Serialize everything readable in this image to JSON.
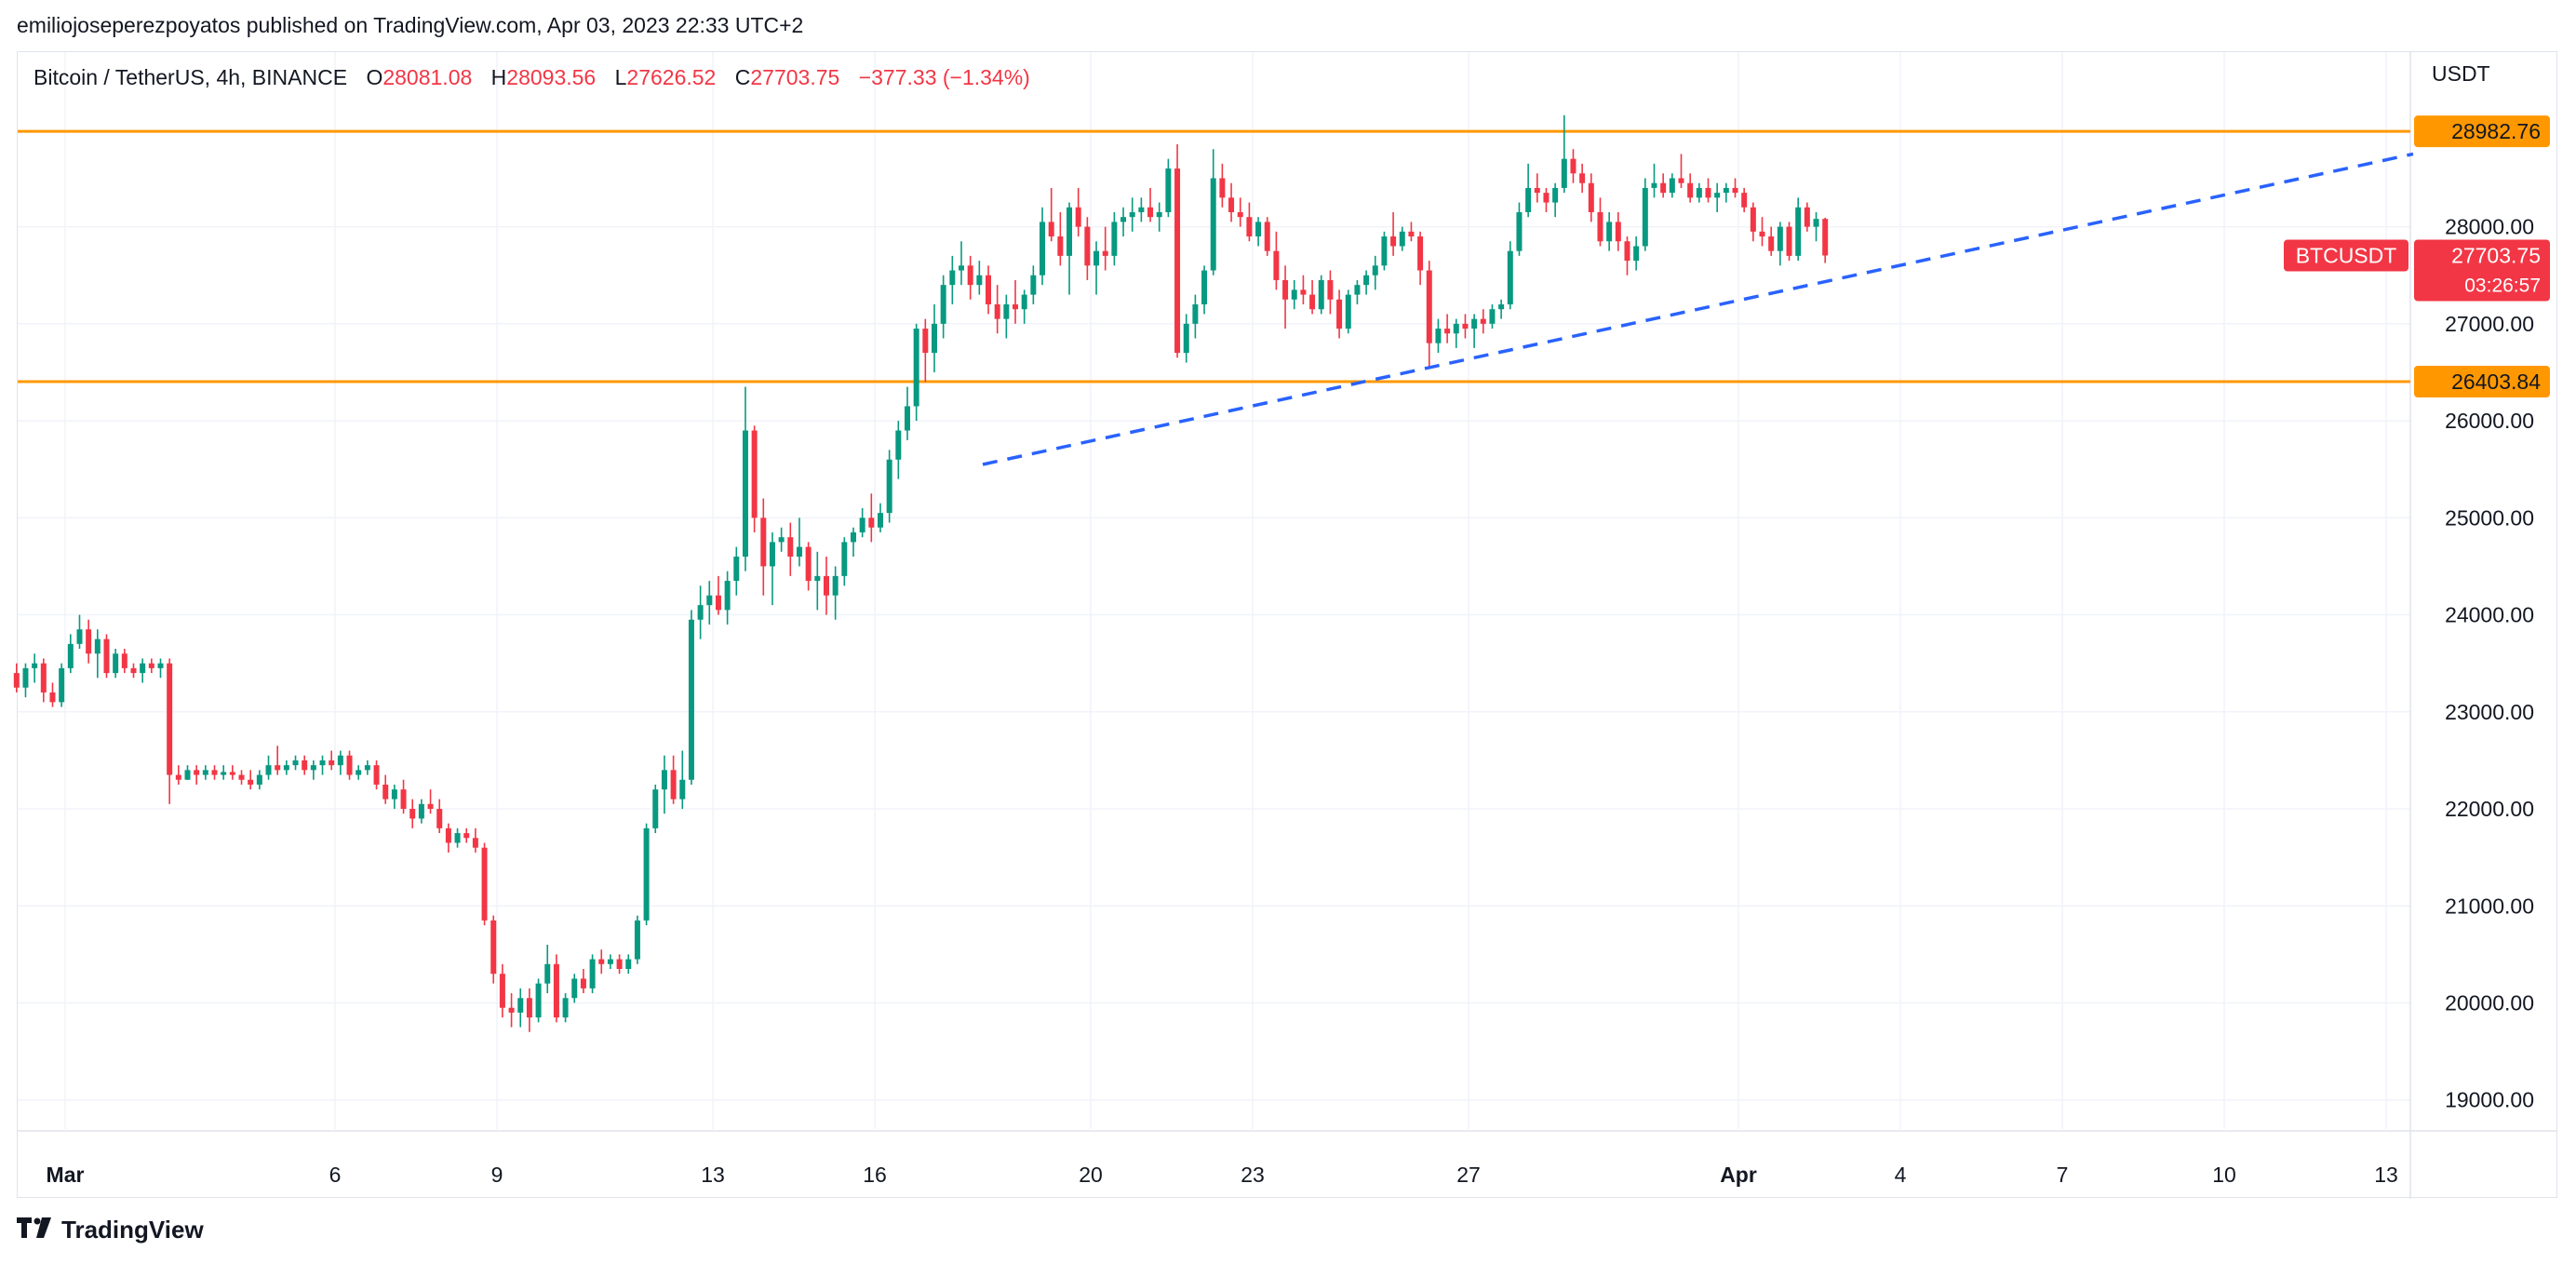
{
  "header": {
    "publisher": "emiliojoseperezpoyatos published on TradingView.com, Apr 03, 2023 22:33 UTC+2"
  },
  "legend": {
    "symbol": "Bitcoin / TetherUS, 4h, BINANCE",
    "o_label": "O",
    "o": "28081.08",
    "h_label": "H",
    "h": "28093.56",
    "l_label": "L",
    "l": "27626.52",
    "c_label": "C",
    "c": "27703.75",
    "change": "−377.33 (−1.34%)"
  },
  "axis": {
    "currency": "USDT"
  },
  "footer": {
    "brand": "TradingView"
  },
  "colors": {
    "up": "#089981",
    "down": "#f23645",
    "level": "#ff9800",
    "trend": "#2962ff",
    "grid": "#f0f3fa"
  },
  "chart_data": {
    "type": "candlestick",
    "symbol": "BTCUSDT",
    "interval": "4h",
    "ylim": [
      18700,
      29800
    ],
    "y_ticks": [
      19000,
      20000,
      21000,
      22000,
      23000,
      24000,
      25000,
      26000,
      27000,
      28000
    ],
    "y_tick_labels": [
      "19000.00",
      "20000.00",
      "21000.00",
      "22000.00",
      "23000.00",
      "24000.00",
      "25000.00",
      "26000.00",
      "27000.00",
      "28000.00"
    ],
    "x_ticks": [
      {
        "label": "Mar",
        "day": 1,
        "bold": true
      },
      {
        "label": "6",
        "day": 6
      },
      {
        "label": "9",
        "day": 9
      },
      {
        "label": "13",
        "day": 13
      },
      {
        "label": "16",
        "day": 16
      },
      {
        "label": "20",
        "day": 20
      },
      {
        "label": "23",
        "day": 23
      },
      {
        "label": "27",
        "day": 27
      },
      {
        "label": "Apr",
        "day": 32,
        "bold": true
      },
      {
        "label": "4",
        "day": 35
      },
      {
        "label": "7",
        "day": 38
      },
      {
        "label": "10",
        "day": 41
      },
      {
        "label": "13",
        "day": 44
      }
    ],
    "x_range_days": [
      0.1,
      45.3
    ],
    "horizontal_levels": [
      {
        "price": 28982.76,
        "label": "28982.76"
      },
      {
        "price": 26403.84,
        "label": "26403.84"
      }
    ],
    "last_price": {
      "symbol": "BTCUSDT",
      "price": 27703.75,
      "label": "27703.75",
      "countdown": "03:26:57"
    },
    "trendline": {
      "start": {
        "day": 18.0,
        "price": 25550
      },
      "end": {
        "day": 44.5,
        "price": 28750
      },
      "style": "dashed"
    },
    "candles_start_day": 0.1,
    "candle_period_days": 0.1667,
    "candles": [
      [
        23400,
        23500,
        23200,
        23250
      ],
      [
        23250,
        23500,
        23150,
        23450
      ],
      [
        23450,
        23600,
        23300,
        23500
      ],
      [
        23500,
        23550,
        23100,
        23200
      ],
      [
        23200,
        23300,
        23050,
        23100
      ],
      [
        23100,
        23500,
        23050,
        23450
      ],
      [
        23450,
        23800,
        23400,
        23700
      ],
      [
        23700,
        24000,
        23650,
        23850
      ],
      [
        23850,
        23950,
        23500,
        23600
      ],
      [
        23600,
        23850,
        23350,
        23750
      ],
      [
        23750,
        23800,
        23350,
        23400
      ],
      [
        23400,
        23650,
        23350,
        23600
      ],
      [
        23600,
        23650,
        23400,
        23450
      ],
      [
        23450,
        23500,
        23350,
        23400
      ],
      [
        23400,
        23550,
        23300,
        23500
      ],
      [
        23500,
        23550,
        23400,
        23450
      ],
      [
        23450,
        23550,
        23350,
        23500
      ],
      [
        23500,
        23550,
        22050,
        22350
      ],
      [
        22350,
        22450,
        22250,
        22300
      ],
      [
        22300,
        22450,
        22300,
        22400
      ],
      [
        22400,
        22450,
        22250,
        22350
      ],
      [
        22350,
        22450,
        22300,
        22400
      ],
      [
        22400,
        22450,
        22300,
        22350
      ],
      [
        22350,
        22450,
        22300,
        22380
      ],
      [
        22380,
        22450,
        22300,
        22350
      ],
      [
        22350,
        22400,
        22250,
        22300
      ],
      [
        22300,
        22400,
        22200,
        22250
      ],
      [
        22250,
        22400,
        22200,
        22350
      ],
      [
        22350,
        22550,
        22300,
        22450
      ],
      [
        22450,
        22650,
        22350,
        22400
      ],
      [
        22400,
        22500,
        22350,
        22450
      ],
      [
        22450,
        22550,
        22400,
        22500
      ],
      [
        22500,
        22550,
        22350,
        22400
      ],
      [
        22400,
        22500,
        22300,
        22450
      ],
      [
        22450,
        22550,
        22350,
        22500
      ],
      [
        22500,
        22600,
        22400,
        22450
      ],
      [
        22450,
        22600,
        22350,
        22550
      ],
      [
        22550,
        22600,
        22300,
        22350
      ],
      [
        22350,
        22450,
        22300,
        22400
      ],
      [
        22400,
        22500,
        22350,
        22450
      ],
      [
        22450,
        22500,
        22200,
        22250
      ],
      [
        22250,
        22350,
        22050,
        22100
      ],
      [
        22100,
        22250,
        22000,
        22200
      ],
      [
        22200,
        22300,
        21950,
        22000
      ],
      [
        22000,
        22100,
        21800,
        21900
      ],
      [
        21900,
        22100,
        21850,
        22050
      ],
      [
        22050,
        22200,
        21950,
        22000
      ],
      [
        22000,
        22100,
        21750,
        21800
      ],
      [
        21800,
        21850,
        21550,
        21650
      ],
      [
        21650,
        21800,
        21600,
        21750
      ],
      [
        21750,
        21800,
        21650,
        21700
      ],
      [
        21700,
        21800,
        21550,
        21600
      ],
      [
        21600,
        21650,
        20800,
        20850
      ],
      [
        20850,
        20900,
        20200,
        20300
      ],
      [
        20300,
        20400,
        19850,
        19950
      ],
      [
        19950,
        20100,
        19750,
        19900
      ],
      [
        19900,
        20150,
        19750,
        20050
      ],
      [
        20050,
        20150,
        19700,
        19850
      ],
      [
        19850,
        20250,
        19800,
        20200
      ],
      [
        20200,
        20600,
        20100,
        20400
      ],
      [
        20400,
        20500,
        19800,
        19850
      ],
      [
        19850,
        20100,
        19800,
        20050
      ],
      [
        20050,
        20300,
        20000,
        20250
      ],
      [
        20250,
        20350,
        20100,
        20150
      ],
      [
        20150,
        20500,
        20100,
        20450
      ],
      [
        20450,
        20550,
        20300,
        20400
      ],
      [
        20400,
        20500,
        20350,
        20450
      ],
      [
        20450,
        20500,
        20300,
        20350
      ],
      [
        20350,
        20500,
        20300,
        20450
      ],
      [
        20450,
        20900,
        20400,
        20850
      ],
      [
        20850,
        21850,
        20800,
        21800
      ],
      [
        21800,
        22250,
        21750,
        22200
      ],
      [
        22200,
        22550,
        21950,
        22400
      ],
      [
        22400,
        22550,
        22050,
        22100
      ],
      [
        22100,
        22600,
        22000,
        22300
      ],
      [
        22300,
        24050,
        22250,
        23950
      ],
      [
        23950,
        24300,
        23750,
        24100
      ],
      [
        24100,
        24350,
        23900,
        24200
      ],
      [
        24200,
        24400,
        24000,
        24050
      ],
      [
        24050,
        24450,
        23900,
        24350
      ],
      [
        24350,
        24700,
        24200,
        24600
      ],
      [
        24600,
        26350,
        24450,
        25900
      ],
      [
        25900,
        25950,
        24850,
        25000
      ],
      [
        25000,
        25200,
        24200,
        24500
      ],
      [
        24500,
        24850,
        24100,
        24750
      ],
      [
        24750,
        24900,
        24650,
        24800
      ],
      [
        24800,
        24950,
        24400,
        24600
      ],
      [
        24600,
        25000,
        24500,
        24700
      ],
      [
        24700,
        24750,
        24250,
        24350
      ],
      [
        24350,
        24650,
        24050,
        24400
      ],
      [
        24400,
        24600,
        24000,
        24200
      ],
      [
        24200,
        24500,
        23950,
        24400
      ],
      [
        24400,
        24800,
        24300,
        24750
      ],
      [
        24750,
        24900,
        24600,
        24850
      ],
      [
        24850,
        25100,
        24800,
        25000
      ],
      [
        25000,
        25250,
        24750,
        24900
      ],
      [
        24900,
        25150,
        24850,
        25050
      ],
      [
        25050,
        25700,
        24950,
        25600
      ],
      [
        25600,
        26000,
        25400,
        25900
      ],
      [
        25900,
        26350,
        25800,
        26150
      ],
      [
        26150,
        27000,
        26000,
        26950
      ],
      [
        26950,
        27050,
        26400,
        26700
      ],
      [
        26700,
        27200,
        26500,
        27000
      ],
      [
        27000,
        27500,
        26850,
        27400
      ],
      [
        27400,
        27700,
        27200,
        27550
      ],
      [
        27550,
        27850,
        27400,
        27600
      ],
      [
        27600,
        27700,
        27250,
        27400
      ],
      [
        27400,
        27650,
        27300,
        27500
      ],
      [
        27500,
        27600,
        27100,
        27200
      ],
      [
        27200,
        27400,
        26900,
        27050
      ],
      [
        27050,
        27300,
        26850,
        27200
      ],
      [
        27200,
        27450,
        27000,
        27150
      ],
      [
        27150,
        27350,
        27000,
        27300
      ],
      [
        27300,
        27600,
        27200,
        27500
      ],
      [
        27500,
        28200,
        27400,
        28050
      ],
      [
        28050,
        28400,
        27850,
        27900
      ],
      [
        27900,
        28150,
        27600,
        27700
      ],
      [
        27700,
        28250,
        27300,
        28200
      ],
      [
        28200,
        28400,
        27900,
        28000
      ],
      [
        28000,
        28100,
        27450,
        27600
      ],
      [
        27600,
        27850,
        27300,
        27750
      ],
      [
        27750,
        28000,
        27550,
        27700
      ],
      [
        27700,
        28150,
        27600,
        28050
      ],
      [
        28050,
        28200,
        27900,
        28100
      ],
      [
        28100,
        28300,
        27950,
        28150
      ],
      [
        28150,
        28300,
        28050,
        28200
      ],
      [
        28200,
        28400,
        28050,
        28100
      ],
      [
        28100,
        28250,
        27950,
        28150
      ],
      [
        28150,
        28700,
        28100,
        28600
      ],
      [
        28600,
        28850,
        26650,
        26700
      ],
      [
        26700,
        27100,
        26600,
        27000
      ],
      [
        27000,
        27300,
        26850,
        27200
      ],
      [
        27200,
        27600,
        27100,
        27550
      ],
      [
        27550,
        28800,
        27500,
        28500
      ],
      [
        28500,
        28650,
        28200,
        28300
      ],
      [
        28300,
        28450,
        28050,
        28150
      ],
      [
        28150,
        28300,
        28000,
        28100
      ],
      [
        28100,
        28250,
        27850,
        27900
      ],
      [
        27900,
        28100,
        27800,
        28050
      ],
      [
        28050,
        28100,
        27700,
        27750
      ],
      [
        27750,
        27950,
        27350,
        27450
      ],
      [
        27450,
        27600,
        26950,
        27250
      ],
      [
        27250,
        27450,
        27150,
        27350
      ],
      [
        27350,
        27500,
        27200,
        27300
      ],
      [
        27300,
        27450,
        27100,
        27150
      ],
      [
        27150,
        27500,
        27100,
        27450
      ],
      [
        27450,
        27550,
        27100,
        27250
      ],
      [
        27250,
        27350,
        26850,
        26950
      ],
      [
        26950,
        27350,
        26900,
        27300
      ],
      [
        27300,
        27450,
        27200,
        27400
      ],
      [
        27400,
        27550,
        27300,
        27500
      ],
      [
        27500,
        27700,
        27350,
        27600
      ],
      [
        27600,
        27950,
        27550,
        27900
      ],
      [
        27900,
        28150,
        27700,
        27800
      ],
      [
        27800,
        28000,
        27750,
        27950
      ],
      [
        27950,
        28050,
        27850,
        27900
      ],
      [
        27900,
        27950,
        27400,
        27550
      ],
      [
        27550,
        27650,
        26550,
        26800
      ],
      [
        26800,
        27050,
        26700,
        26950
      ],
      [
        26950,
        27100,
        26800,
        26900
      ],
      [
        26900,
        27050,
        26750,
        27000
      ],
      [
        27000,
        27100,
        26850,
        26950
      ],
      [
        26950,
        27100,
        26750,
        27050
      ],
      [
        27050,
        27150,
        26900,
        27000
      ],
      [
        27000,
        27200,
        26950,
        27150
      ],
      [
        27150,
        27250,
        27050,
        27200
      ],
      [
        27200,
        27850,
        27150,
        27750
      ],
      [
        27750,
        28250,
        27700,
        28150
      ],
      [
        28150,
        28650,
        28100,
        28400
      ],
      [
        28400,
        28550,
        28250,
        28350
      ],
      [
        28350,
        28400,
        28150,
        28250
      ],
      [
        28250,
        28450,
        28100,
        28400
      ],
      [
        28400,
        29150,
        28350,
        28700
      ],
      [
        28700,
        28800,
        28450,
        28550
      ],
      [
        28550,
        28650,
        28350,
        28450
      ],
      [
        28450,
        28550,
        28050,
        28150
      ],
      [
        28150,
        28300,
        27800,
        27850
      ],
      [
        27850,
        28150,
        27750,
        28050
      ],
      [
        28050,
        28150,
        27750,
        27850
      ],
      [
        27850,
        27900,
        27500,
        27650
      ],
      [
        27650,
        27900,
        27550,
        27800
      ],
      [
        27800,
        28500,
        27750,
        28400
      ],
      [
        28400,
        28650,
        28300,
        28450
      ],
      [
        28450,
        28550,
        28300,
        28350
      ],
      [
        28350,
        28550,
        28300,
        28500
      ],
      [
        28500,
        28750,
        28400,
        28450
      ],
      [
        28450,
        28550,
        28250,
        28300
      ],
      [
        28300,
        28450,
        28250,
        28400
      ],
      [
        28400,
        28500,
        28250,
        28300
      ],
      [
        28300,
        28450,
        28150,
        28350
      ],
      [
        28350,
        28450,
        28250,
        28400
      ],
      [
        28400,
        28500,
        28300,
        28350
      ],
      [
        28350,
        28400,
        28150,
        28200
      ],
      [
        28200,
        28250,
        27850,
        27950
      ],
      [
        27950,
        28100,
        27800,
        27900
      ],
      [
        27900,
        28000,
        27700,
        27750
      ],
      [
        27750,
        28050,
        27600,
        28000
      ],
      [
        28000,
        28050,
        27650,
        27700
      ],
      [
        27700,
        28300,
        27650,
        28200
      ],
      [
        28200,
        28250,
        27950,
        28000
      ],
      [
        28000,
        28150,
        27850,
        28081
      ],
      [
        28081,
        28093,
        27626,
        27704
      ]
    ]
  }
}
